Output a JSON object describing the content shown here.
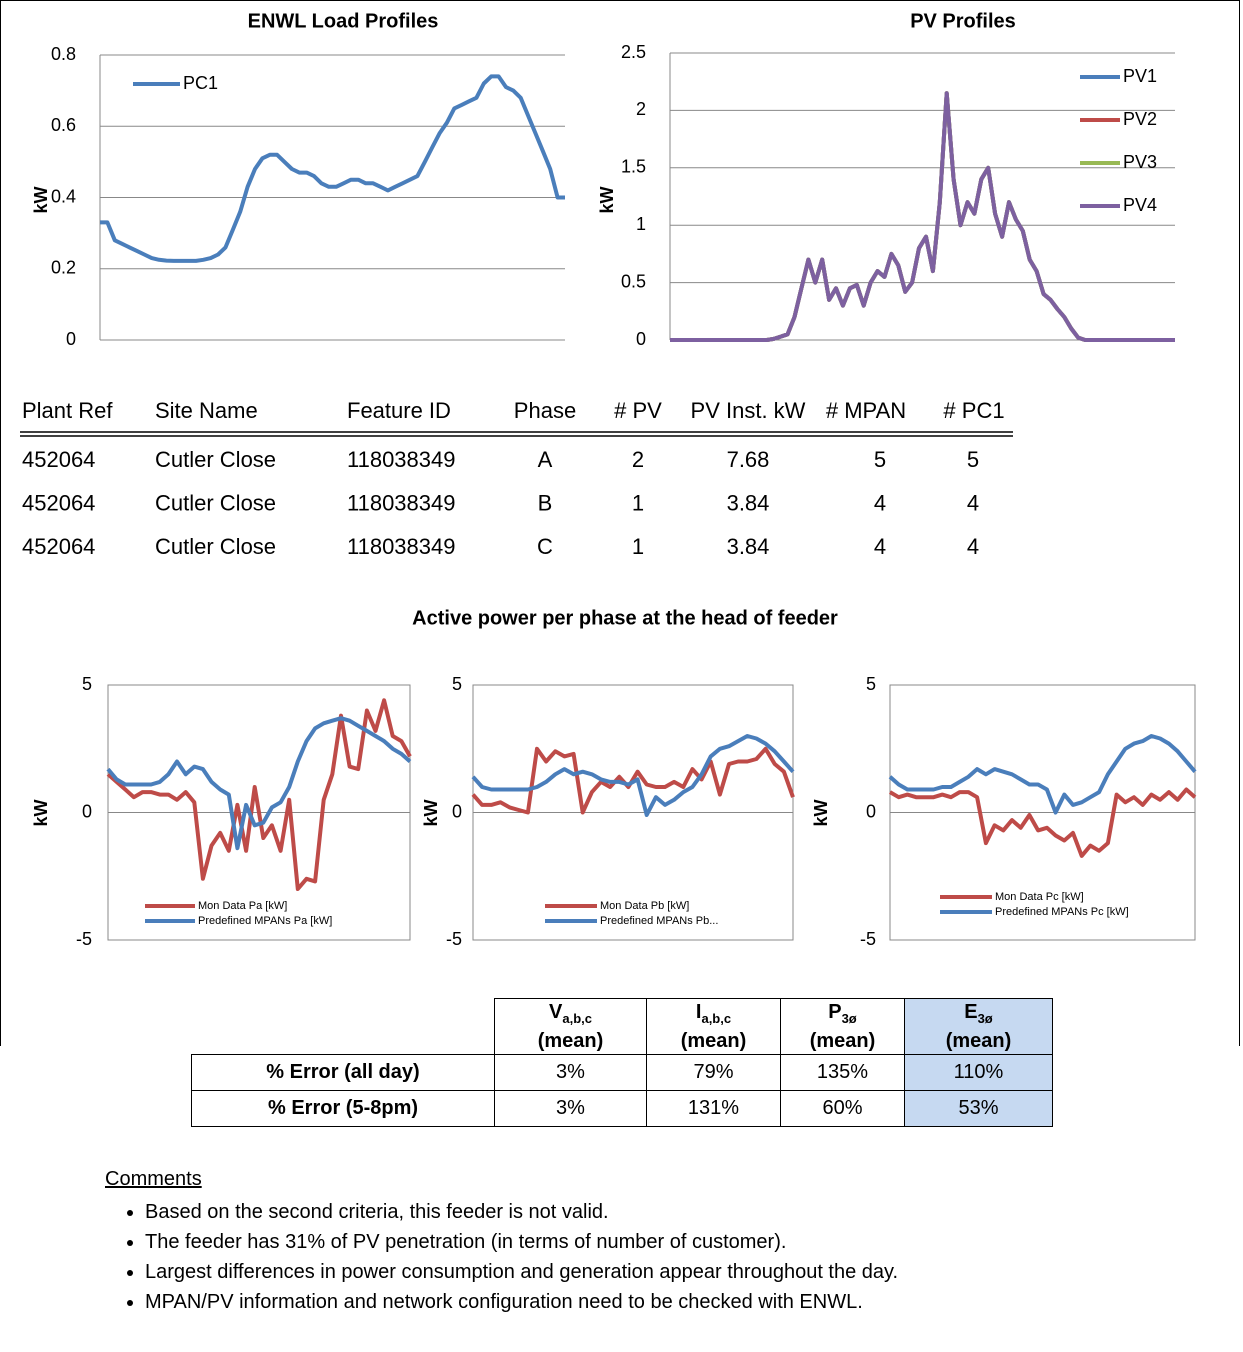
{
  "chart_data": [
    {
      "type": "line",
      "title": "ENWL Load Profiles",
      "y_label": "kW",
      "ylim": [
        0,
        0.8
      ],
      "yticks": [
        0,
        0.2,
        0.4,
        0.6,
        0.8
      ],
      "grid": true,
      "legend": "upper left",
      "series": [
        {
          "name": "PC1",
          "color": "#4a7ebb",
          "values": [
            0.33,
            0.33,
            0.28,
            0.27,
            0.26,
            0.25,
            0.24,
            0.23,
            0.225,
            0.223,
            0.222,
            0.222,
            0.222,
            0.222,
            0.225,
            0.23,
            0.24,
            0.26,
            0.31,
            0.36,
            0.43,
            0.48,
            0.51,
            0.52,
            0.52,
            0.5,
            0.48,
            0.47,
            0.47,
            0.46,
            0.44,
            0.43,
            0.43,
            0.44,
            0.45,
            0.45,
            0.44,
            0.44,
            0.43,
            0.42,
            0.43,
            0.44,
            0.45,
            0.46,
            0.5,
            0.54,
            0.58,
            0.61,
            0.65,
            0.66,
            0.67,
            0.68,
            0.72,
            0.74,
            0.74,
            0.71,
            0.7,
            0.68,
            0.63,
            0.58,
            0.53,
            0.48,
            0.4,
            0.4
          ]
        }
      ]
    },
    {
      "type": "line",
      "title": "PV Profiles",
      "y_label": "kW",
      "ylim": [
        0,
        2.5
      ],
      "yticks": [
        0,
        0.5,
        1,
        1.5,
        2,
        2.5
      ],
      "grid": true,
      "legend": "right",
      "series": [
        {
          "name": "PV1",
          "color": "#4a7ebb",
          "values": [
            0,
            0,
            0,
            0,
            0,
            0,
            0,
            0,
            0,
            0,
            0,
            0,
            0,
            0,
            0,
            0.01,
            0.03,
            0.05,
            0.2,
            0.45,
            0.7,
            0.5,
            0.7,
            0.35,
            0.45,
            0.3,
            0.45,
            0.48,
            0.3,
            0.5,
            0.6,
            0.55,
            0.75,
            0.65,
            0.42,
            0.5,
            0.8,
            0.9,
            0.6,
            1.2,
            2.15,
            1.4,
            1.0,
            1.2,
            1.1,
            1.4,
            1.5,
            1.1,
            0.9,
            1.2,
            1.05,
            0.95,
            0.7,
            0.6,
            0.4,
            0.35,
            0.27,
            0.2,
            0.1,
            0.02,
            0,
            0,
            0,
            0,
            0,
            0,
            0,
            0,
            0,
            0,
            0,
            0,
            0,
            0
          ]
        },
        {
          "name": "PV2",
          "color": "#be4b48",
          "values": [
            0,
            0,
            0,
            0,
            0,
            0,
            0,
            0,
            0,
            0,
            0,
            0,
            0,
            0,
            0,
            0.01,
            0.03,
            0.05,
            0.2,
            0.45,
            0.7,
            0.5,
            0.7,
            0.35,
            0.45,
            0.3,
            0.45,
            0.48,
            0.3,
            0.5,
            0.6,
            0.55,
            0.75,
            0.65,
            0.42,
            0.5,
            0.8,
            0.9,
            0.6,
            1.2,
            2.15,
            1.4,
            1.0,
            1.2,
            1.1,
            1.4,
            1.5,
            1.1,
            0.9,
            1.2,
            1.05,
            0.95,
            0.7,
            0.6,
            0.4,
            0.35,
            0.27,
            0.2,
            0.1,
            0.02,
            0,
            0,
            0,
            0,
            0,
            0,
            0,
            0,
            0,
            0,
            0,
            0,
            0,
            0
          ]
        },
        {
          "name": "PV3",
          "color": "#98b954",
          "values": [
            0,
            0,
            0,
            0,
            0,
            0,
            0,
            0,
            0,
            0,
            0,
            0,
            0,
            0,
            0,
            0.01,
            0.03,
            0.05,
            0.2,
            0.45,
            0.7,
            0.5,
            0.7,
            0.35,
            0.45,
            0.3,
            0.45,
            0.48,
            0.3,
            0.5,
            0.6,
            0.55,
            0.75,
            0.65,
            0.42,
            0.5,
            0.8,
            0.9,
            0.6,
            1.2,
            2.15,
            1.4,
            1.0,
            1.2,
            1.1,
            1.4,
            1.5,
            1.1,
            0.9,
            1.2,
            1.05,
            0.95,
            0.7,
            0.6,
            0.4,
            0.35,
            0.27,
            0.2,
            0.1,
            0.02,
            0,
            0,
            0,
            0,
            0,
            0,
            0,
            0,
            0,
            0,
            0,
            0,
            0,
            0
          ]
        },
        {
          "name": "PV4",
          "color": "#7d60a0",
          "values": [
            0,
            0,
            0,
            0,
            0,
            0,
            0,
            0,
            0,
            0,
            0,
            0,
            0,
            0,
            0,
            0.01,
            0.03,
            0.05,
            0.2,
            0.45,
            0.7,
            0.5,
            0.7,
            0.35,
            0.45,
            0.3,
            0.45,
            0.48,
            0.3,
            0.5,
            0.6,
            0.55,
            0.75,
            0.65,
            0.42,
            0.5,
            0.8,
            0.9,
            0.6,
            1.2,
            2.15,
            1.4,
            1.0,
            1.2,
            1.1,
            1.4,
            1.5,
            1.1,
            0.9,
            1.2,
            1.05,
            0.95,
            0.7,
            0.6,
            0.4,
            0.35,
            0.27,
            0.2,
            0.1,
            0.02,
            0,
            0,
            0,
            0,
            0,
            0,
            0,
            0,
            0,
            0,
            0,
            0,
            0,
            0
          ]
        }
      ]
    },
    {
      "type": "line",
      "y_label": "kW",
      "ylim": [
        -5,
        5
      ],
      "yticks": [
        -5,
        0,
        5
      ],
      "grid": true,
      "legend": "lower left",
      "series": [
        {
          "name": "Mon Data Pa [kW]",
          "color": "#be4b48",
          "values": [
            1.5,
            1.2,
            0.9,
            0.6,
            0.8,
            0.8,
            0.7,
            0.7,
            0.5,
            0.8,
            0.4,
            -2.6,
            -1.3,
            -0.8,
            -1.5,
            0.3,
            -1.5,
            1.0,
            -1.0,
            -0.5,
            -1.5,
            0.5,
            -3.0,
            -2.6,
            -2.7,
            0.5,
            1.5,
            3.8,
            1.8,
            1.7,
            4.0,
            3.2,
            4.4,
            3.0,
            2.8,
            2.2
          ]
        },
        {
          "name": "Predefined MPANs Pa [kW]",
          "color": "#4a7ebb",
          "values": [
            1.7,
            1.3,
            1.1,
            1.1,
            1.1,
            1.1,
            1.2,
            1.5,
            2.0,
            1.5,
            1.8,
            1.7,
            1.2,
            0.9,
            0.7,
            -1.4,
            0.3,
            -0.5,
            -0.4,
            0.2,
            0.4,
            1.0,
            2.0,
            2.8,
            3.3,
            3.5,
            3.6,
            3.7,
            3.6,
            3.4,
            3.2,
            3.0,
            2.8,
            2.5,
            2.3,
            2.0
          ]
        }
      ]
    },
    {
      "type": "line",
      "y_label": "kW",
      "ylim": [
        -5,
        5
      ],
      "yticks": [
        -5,
        0,
        5
      ],
      "grid": true,
      "legend": "lower left",
      "series": [
        {
          "name": "Mon Data Pb [kW]",
          "color": "#be4b48",
          "values": [
            0.7,
            0.3,
            0.3,
            0.4,
            0.2,
            0.1,
            0.0,
            2.5,
            2.0,
            2.4,
            2.2,
            2.3,
            0.0,
            0.8,
            1.2,
            1.0,
            1.4,
            1.0,
            1.6,
            1.1,
            1.0,
            1.0,
            1.2,
            1.0,
            1.7,
            1.3,
            2.0,
            0.7,
            1.9,
            2.0,
            2.0,
            2.1,
            2.5,
            1.9,
            1.6,
            0.6
          ]
        },
        {
          "name": "Predefined MPANs Pb...",
          "color": "#4a7ebb",
          "values": [
            1.4,
            1.0,
            0.9,
            0.9,
            0.9,
            0.9,
            0.9,
            1.0,
            1.2,
            1.5,
            1.7,
            1.5,
            1.6,
            1.5,
            1.3,
            1.2,
            1.2,
            1.1,
            1.3,
            -0.1,
            0.6,
            0.3,
            0.5,
            0.8,
            1.0,
            1.5,
            2.2,
            2.5,
            2.6,
            2.8,
            3.0,
            2.9,
            2.7,
            2.4,
            2.0,
            1.6
          ]
        }
      ]
    },
    {
      "type": "line",
      "y_label": "kW",
      "ylim": [
        -5,
        5
      ],
      "yticks": [
        -5,
        0,
        5
      ],
      "grid": true,
      "legend": "lower right",
      "series": [
        {
          "name": "Mon Data Pc [kW]",
          "color": "#be4b48",
          "values": [
            0.8,
            0.6,
            0.7,
            0.6,
            0.6,
            0.6,
            0.7,
            0.6,
            0.8,
            0.8,
            0.6,
            -1.2,
            -0.5,
            -0.7,
            -0.3,
            -0.6,
            -0.1,
            -0.7,
            -0.6,
            -0.9,
            -1.1,
            -0.8,
            -1.7,
            -1.3,
            -1.5,
            -1.2,
            0.7,
            0.4,
            0.6,
            0.3,
            0.7,
            0.5,
            0.8,
            0.5,
            0.9,
            0.6
          ]
        },
        {
          "name": "Predefined MPANs Pc [kW]",
          "color": "#4a7ebb",
          "values": [
            1.4,
            1.1,
            0.9,
            0.9,
            0.9,
            0.9,
            1.0,
            1.0,
            1.2,
            1.4,
            1.7,
            1.5,
            1.7,
            1.6,
            1.5,
            1.3,
            1.1,
            1.1,
            0.9,
            0.0,
            0.7,
            0.3,
            0.4,
            0.6,
            0.8,
            1.5,
            2.0,
            2.5,
            2.7,
            2.8,
            3.0,
            2.9,
            2.7,
            2.4,
            2.0,
            1.6
          ]
        }
      ]
    }
  ],
  "site_table": {
    "columns": [
      "Plant Ref",
      "Site Name",
      "Feature ID",
      "Phase",
      "# PV",
      "PV Inst. kW",
      "# MPAN",
      "# PC1"
    ],
    "rows": [
      [
        "452064",
        "Cutler Close",
        "118038349",
        "A",
        "2",
        "7.68",
        "5",
        "5"
      ],
      [
        "452064",
        "Cutler Close",
        "118038349",
        "B",
        "1",
        "3.84",
        "4",
        "4"
      ],
      [
        "452064",
        "Cutler Close",
        "118038349",
        "C",
        "1",
        "3.84",
        "4",
        "4"
      ]
    ]
  },
  "power_title": "Active power per phase at the head of feeder",
  "error_table": {
    "columns": [
      {
        "symbol": "V",
        "subscript": "a,b,c",
        "qualifier": "(mean)"
      },
      {
        "symbol": "I",
        "subscript": "a,b,c",
        "qualifier": "(mean)"
      },
      {
        "symbol": "P",
        "subscript": "3ø",
        "qualifier": "(mean)"
      },
      {
        "symbol": "E",
        "subscript": "3ø",
        "qualifier": "(mean)"
      }
    ],
    "rows": [
      {
        "label": "% Error (all day)",
        "cells": [
          "3%",
          "79%",
          "135%",
          "110%"
        ]
      },
      {
        "label": "% Error (5-8pm)",
        "cells": [
          "3%",
          "131%",
          "60%",
          "53%"
        ]
      }
    ]
  },
  "comments": {
    "heading": "Comments",
    "items": [
      "Based on the second criteria, this feeder is not valid.",
      "The feeder has 31% of PV penetration (in terms of number of customer).",
      "Largest differences in power consumption and generation appear throughout the day.",
      "MPAN/PV information and network configuration need to be checked with ENWL."
    ]
  }
}
